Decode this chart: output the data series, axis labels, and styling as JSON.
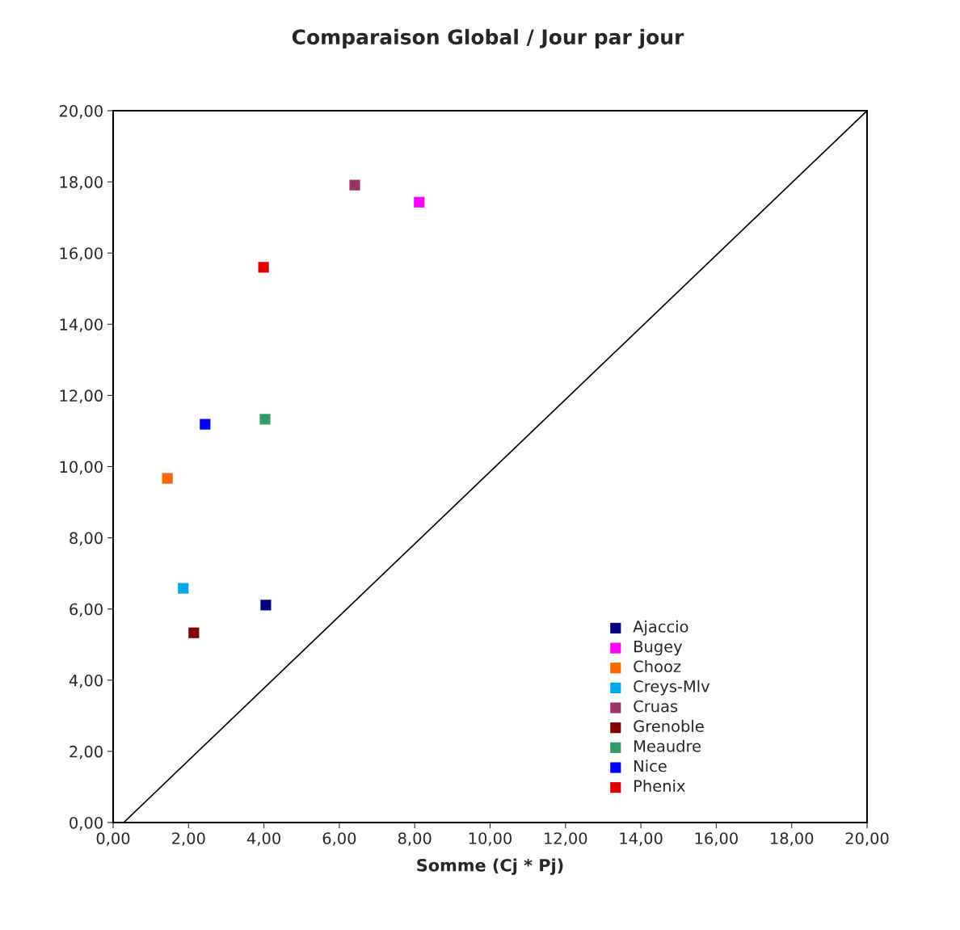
{
  "chart_data": {
    "type": "scatter",
    "title": "Comparaison Global / Jour par jour",
    "xlabel": "Somme (Cj * Pj)",
    "marker": "square",
    "legend": "bottom right",
    "grid": false,
    "xlim": [
      0,
      20
    ],
    "ylim": [
      0,
      20
    ],
    "xticks": [
      {
        "value": 0,
        "label": "0,00"
      },
      {
        "value": 2,
        "label": "2,00"
      },
      {
        "value": 4,
        "label": "4,00"
      },
      {
        "value": 6,
        "label": "6,00"
      },
      {
        "value": 8,
        "label": "8,00"
      },
      {
        "value": 10,
        "label": "10,00"
      },
      {
        "value": 12,
        "label": "12,00"
      },
      {
        "value": 14,
        "label": "14,00"
      },
      {
        "value": 16,
        "label": "16,00"
      },
      {
        "value": 18,
        "label": "18,00"
      },
      {
        "value": 20,
        "label": "20,00"
      }
    ],
    "yticks": [
      {
        "value": 0,
        "label": "0,00"
      },
      {
        "value": 2,
        "label": "2,00"
      },
      {
        "value": 4,
        "label": "4,00"
      },
      {
        "value": 6,
        "label": "6,00"
      },
      {
        "value": 8,
        "label": "8,00"
      },
      {
        "value": 10,
        "label": "10,00"
      },
      {
        "value": 12,
        "label": "12,00"
      },
      {
        "value": 14,
        "label": "14,00"
      },
      {
        "value": 16,
        "label": "16,00"
      },
      {
        "value": 18,
        "label": "18,00"
      },
      {
        "value": 20,
        "label": "20,00"
      }
    ],
    "series": [
      {
        "name": "Ajaccio",
        "color": "#000080",
        "x": [
          4.05
        ],
        "values": [
          6.11
        ]
      },
      {
        "name": "Bugey",
        "color": "#ff00ff",
        "x": [
          8.12
        ],
        "values": [
          17.43
        ]
      },
      {
        "name": "Chooz",
        "color": "#ff6600",
        "x": [
          1.44
        ],
        "values": [
          9.67
        ]
      },
      {
        "name": "Creys-Mlv",
        "color": "#00a8e8",
        "x": [
          1.86
        ],
        "values": [
          6.58
        ]
      },
      {
        "name": "Cruas",
        "color": "#993366",
        "x": [
          6.41
        ],
        "values": [
          17.91
        ]
      },
      {
        "name": "Grenoble",
        "color": "#800000",
        "x": [
          2.14
        ],
        "values": [
          5.33
        ]
      },
      {
        "name": "Meaudre",
        "color": "#339966",
        "x": [
          4.03
        ],
        "values": [
          11.33
        ]
      },
      {
        "name": "Nice",
        "color": "#0000ff",
        "x": [
          2.44
        ],
        "values": [
          11.19
        ]
      },
      {
        "name": "Phenix",
        "color": "#e00000",
        "x": [
          3.99
        ],
        "values": [
          15.6
        ]
      },
      {
        "type": "line",
        "color": "#000000",
        "marker": "none",
        "x": [
          0.28,
          20
        ],
        "values": [
          0,
          20
        ]
      }
    ]
  }
}
